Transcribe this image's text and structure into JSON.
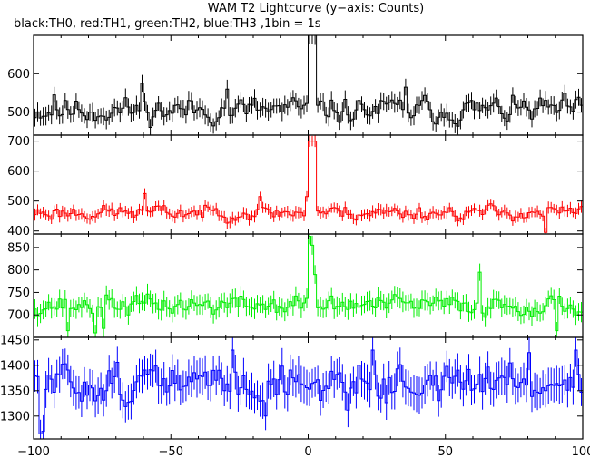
{
  "title": "WAM T2 Lightcurve (y−axis: Counts)",
  "subtitle": "black:TH0, red:TH1, green:TH2, blue:TH3 ,1bin = 1s",
  "chart_data": [
    {
      "type": "line",
      "series": [
        {
          "name": "TH0",
          "color": "#000000",
          "baseline": 505,
          "spread": 28,
          "error": 22,
          "seed": 11,
          "peaks": [
            [
              0,
              700
            ],
            [
              1,
              700
            ],
            [
              2,
              700
            ],
            [
              -61,
              575
            ],
            [
              35,
              565
            ],
            [
              -30,
              560
            ],
            [
              -93,
              545
            ]
          ]
        }
      ],
      "x": {
        "min": -100,
        "max": 100,
        "step": 1
      },
      "xticks": [
        -100,
        -50,
        0,
        50,
        100
      ],
      "ylim": [
        440,
        700
      ],
      "yticks": [
        500,
        600
      ],
      "xlabel": "",
      "ylabel": ""
    },
    {
      "type": "line",
      "series": [
        {
          "name": "TH1",
          "color": "#ff0000",
          "baseline": 462,
          "spread": 20,
          "error": 18,
          "seed": 23,
          "peaks": [
            [
              0,
              700
            ],
            [
              1,
              700
            ],
            [
              2,
              700
            ],
            [
              -60,
              525
            ],
            [
              -1,
              515
            ],
            [
              -18,
              515
            ],
            [
              86,
              395
            ]
          ]
        }
      ],
      "x": {
        "min": -100,
        "max": 100,
        "step": 1
      },
      "xticks": [
        -100,
        -50,
        0,
        50,
        100
      ],
      "ylim": [
        390,
        720
      ],
      "yticks": [
        400,
        500,
        600,
        700
      ],
      "xlabel": "",
      "ylabel": ""
    },
    {
      "type": "line",
      "series": [
        {
          "name": "TH2",
          "color": "#00ee00",
          "baseline": 722,
          "spread": 18,
          "error": 20,
          "seed": 37,
          "peaks": [
            [
              0,
              875
            ],
            [
              1,
              855
            ],
            [
              2,
              790
            ],
            [
              62,
              795
            ],
            [
              -75,
              670
            ],
            [
              -88,
              665
            ],
            [
              -78,
              660
            ],
            [
              90,
              665
            ]
          ]
        }
      ],
      "x": {
        "min": -100,
        "max": 100,
        "step": 1
      },
      "xticks": [
        -100,
        -50,
        0,
        50,
        100
      ],
      "ylim": [
        650,
        880
      ],
      "yticks": [
        700,
        750,
        800,
        850
      ],
      "xlabel": "",
      "ylabel": ""
    },
    {
      "type": "line",
      "series": [
        {
          "name": "TH3",
          "color": "#0000ff",
          "baseline": 1365,
          "spread": 32,
          "error": 32,
          "seed": 51,
          "peaks": [
            [
              -98,
              1265
            ],
            [
              -97,
              1270
            ],
            [
              -28,
              1430
            ],
            [
              -16,
              1300
            ],
            [
              23,
              1430
            ],
            [
              80,
              1425
            ],
            [
              97,
              1430
            ]
          ]
        }
      ],
      "x": {
        "min": -100,
        "max": 100,
        "step": 1
      },
      "xticks": [
        -100,
        -50,
        0,
        50,
        100
      ],
      "ylim": [
        1255,
        1455
      ],
      "yticks": [
        1300,
        1350,
        1400,
        1450
      ],
      "xlabel": "",
      "ylabel": ""
    }
  ]
}
